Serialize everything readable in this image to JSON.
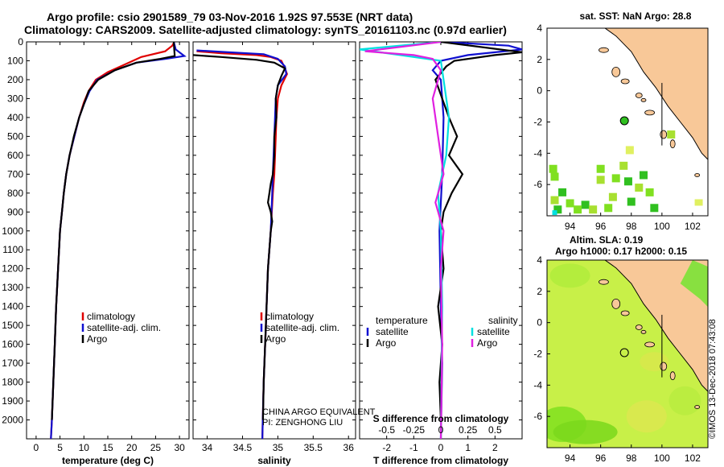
{
  "header": {
    "line1": "Argo profile: csio 2901589_79 03-Nov-2016 1.92S 97.553E (NRT data)",
    "line2": "Climatology: CARS2009. Satellite-adjusted climatology: synTS_20161103.nc (0.97d earlier)"
  },
  "colors": {
    "climatology": "#e00000",
    "satellite": "#1010d0",
    "argo": "#000000",
    "sat_t": "#1010d0",
    "sat_s": "#00e0e0",
    "argo_s": "#e020e0",
    "land": "#f8c898",
    "sea_map": "#ffffff"
  },
  "chart_data": [
    {
      "type": "line",
      "id": "temperature",
      "xlabel": "temperature (deg C)",
      "xlim": [
        -2,
        32
      ],
      "xticks": [
        0,
        5,
        10,
        15,
        20,
        25,
        30
      ],
      "ylim": [
        2100,
        0
      ],
      "yticks": [
        0,
        100,
        200,
        300,
        400,
        500,
        600,
        700,
        800,
        900,
        1000,
        1100,
        1200,
        1300,
        1400,
        1500,
        1600,
        1700,
        1800,
        1900,
        2000
      ],
      "legend": [
        "climatology",
        "satellite-adj. clim.",
        "Argo"
      ],
      "series": [
        {
          "name": "climatology",
          "color": "#e00000",
          "points": [
            [
              28.9,
              0
            ],
            [
              28.5,
              20
            ],
            [
              27,
              50
            ],
            [
              22,
              80
            ],
            [
              18.5,
              120
            ],
            [
              15,
              160
            ],
            [
              12.5,
              200
            ],
            [
              11,
              260
            ],
            [
              10,
              320
            ],
            [
              9,
              400
            ],
            [
              8,
              500
            ],
            [
              7,
              600
            ],
            [
              6.3,
              700
            ],
            [
              5.8,
              800
            ],
            [
              5.4,
              900
            ],
            [
              5,
              1000
            ],
            [
              4.6,
              1200
            ],
            [
              4.2,
              1400
            ],
            [
              3.9,
              1600
            ],
            [
              3.6,
              1800
            ],
            [
              3.3,
              2000
            ],
            [
              3.1,
              2100
            ]
          ]
        },
        {
          "name": "satellite-adj. clim.",
          "color": "#1010d0",
          "points": [
            [
              28.8,
              0
            ],
            [
              29.2,
              40
            ],
            [
              31,
              75
            ],
            [
              27,
              90
            ],
            [
              21,
              110
            ],
            [
              16.5,
              150
            ],
            [
              12.8,
              200
            ],
            [
              11.2,
              260
            ],
            [
              10,
              330
            ],
            [
              9,
              400
            ],
            [
              8,
              500
            ],
            [
              7,
              600
            ],
            [
              6.3,
              700
            ],
            [
              5.8,
              800
            ],
            [
              5.4,
              900
            ],
            [
              5,
              1000
            ],
            [
              4.6,
              1200
            ],
            [
              4.2,
              1400
            ],
            [
              3.9,
              1600
            ],
            [
              3.6,
              1800
            ],
            [
              3.3,
              2000
            ],
            [
              3.1,
              2100
            ]
          ]
        },
        {
          "name": "Argo",
          "color": "#000000",
          "points": [
            [
              28.8,
              0
            ],
            [
              28.9,
              40
            ],
            [
              29,
              75
            ],
            [
              26,
              90
            ],
            [
              21,
              110
            ],
            [
              16.5,
              150
            ],
            [
              13,
              200
            ],
            [
              11,
              260
            ],
            [
              10,
              330
            ],
            [
              9,
              400
            ],
            [
              7.9,
              500
            ],
            [
              7,
              600
            ],
            [
              6.3,
              700
            ],
            [
              5.8,
              800
            ],
            [
              5.4,
              900
            ],
            [
              5,
              1000
            ],
            [
              4.6,
              1200
            ],
            [
              4.2,
              1400
            ],
            [
              3.9,
              1600
            ],
            [
              3.6,
              1800
            ],
            [
              3.3,
              2000
            ]
          ]
        }
      ]
    },
    {
      "type": "line",
      "id": "salinity",
      "xlabel": "salinity",
      "xlim": [
        33.8,
        36.1
      ],
      "xticks": [
        34,
        34.5,
        35,
        35.5,
        36
      ],
      "ylim": [
        2100,
        0
      ],
      "legend": [
        "climatology",
        "satellite-adj. clim.",
        "Argo"
      ],
      "series": [
        {
          "name": "climatology",
          "color": "#e00000",
          "points": [
            [
              33.85,
              50
            ],
            [
              34.2,
              60
            ],
            [
              34.7,
              70
            ],
            [
              34.9,
              80
            ],
            [
              35.05,
              100
            ],
            [
              35.1,
              140
            ],
            [
              35.13,
              170
            ],
            [
              35.05,
              230
            ],
            [
              35.0,
              300
            ],
            [
              34.98,
              400
            ],
            [
              34.97,
              500
            ],
            [
              34.96,
              600
            ],
            [
              34.95,
              700
            ],
            [
              34.93,
              800
            ],
            [
              34.9,
              1000
            ],
            [
              34.86,
              1200
            ],
            [
              34.83,
              1500
            ],
            [
              34.8,
              1800
            ],
            [
              34.78,
              2100
            ]
          ]
        },
        {
          "name": "satellite-adj. clim.",
          "color": "#1010d0",
          "points": [
            [
              33.85,
              45
            ],
            [
              34.3,
              55
            ],
            [
              34.8,
              65
            ],
            [
              35.0,
              90
            ],
            [
              35.1,
              130
            ],
            [
              35.12,
              170
            ],
            [
              35.0,
              230
            ],
            [
              34.97,
              300
            ],
            [
              34.96,
              400
            ],
            [
              34.95,
              500
            ],
            [
              34.94,
              600
            ],
            [
              34.93,
              700
            ],
            [
              34.92,
              800
            ],
            [
              34.9,
              1000
            ],
            [
              34.86,
              1200
            ],
            [
              34.83,
              1500
            ],
            [
              34.8,
              1800
            ],
            [
              34.78,
              2100
            ]
          ]
        },
        {
          "name": "Argo",
          "color": "#000000",
          "points": [
            [
              33.8,
              70
            ],
            [
              34.2,
              80
            ],
            [
              34.7,
              95
            ],
            [
              34.95,
              110
            ],
            [
              35.1,
              140
            ],
            [
              35.05,
              180
            ],
            [
              35.0,
              230
            ],
            [
              34.97,
              300
            ],
            [
              34.98,
              400
            ],
            [
              34.95,
              500
            ],
            [
              34.95,
              600
            ],
            [
              34.93,
              700
            ],
            [
              34.9,
              750
            ],
            [
              34.88,
              800
            ],
            [
              34.86,
              850
            ],
            [
              34.9,
              900
            ],
            [
              34.92,
              950
            ],
            [
              34.9,
              1000
            ],
            [
              34.86,
              1200
            ],
            [
              34.83,
              1500
            ],
            [
              34.8,
              1800
            ],
            [
              34.79,
              2000
            ]
          ]
        }
      ]
    },
    {
      "type": "line",
      "id": "difference",
      "xlabel": "T difference from climatology",
      "xlabel2": "S difference from climatology",
      "xlim": [
        -3,
        3
      ],
      "xticks": [
        -2,
        -1,
        0,
        1,
        2
      ],
      "xticks2": [
        -0.5,
        -0.25,
        0,
        0.25,
        0.5
      ],
      "xticks2_labels": [
        "-0.5",
        "-0.25",
        "0",
        "0.25",
        "0.5"
      ],
      "ylim": [
        2100,
        0
      ],
      "legend_left": {
        "title": "temperature",
        "items": [
          "satellite",
          "Argo"
        ]
      },
      "legend_right": {
        "title": "salinity",
        "items": [
          "satellite",
          "Argo"
        ]
      },
      "series": [
        {
          "name": "T satellite",
          "color": "#1010d0",
          "points": [
            [
              0,
              0
            ],
            [
              2.5,
              20
            ],
            [
              3,
              40
            ],
            [
              1,
              70
            ],
            [
              0,
              100
            ],
            [
              -0.3,
              150
            ],
            [
              0,
              200
            ],
            [
              0.1,
              400
            ],
            [
              0.05,
              700
            ],
            [
              -0.05,
              1000
            ],
            [
              0,
              1400
            ],
            [
              0.05,
              1700
            ],
            [
              0,
              2100
            ]
          ]
        },
        {
          "name": "T Argo",
          "color": "#000000",
          "points": [
            [
              0,
              0
            ],
            [
              3,
              55
            ],
            [
              2,
              70
            ],
            [
              0.5,
              100
            ],
            [
              0.2,
              130
            ],
            [
              -0.2,
              200
            ],
            [
              0.3,
              400
            ],
            [
              0.6,
              500
            ],
            [
              0.3,
              600
            ],
            [
              0.8,
              700
            ],
            [
              0.4,
              800
            ],
            [
              0.1,
              900
            ],
            [
              0,
              1000
            ],
            [
              0.1,
              1200
            ],
            [
              -0.1,
              1400
            ],
            [
              0.05,
              1600
            ],
            [
              -0.05,
              1800
            ],
            [
              0,
              2000
            ]
          ]
        },
        {
          "name": "S satellite",
          "color": "#00e0e0",
          "points": [
            [
              0,
              0
            ],
            [
              -3,
              40
            ],
            [
              -1.5,
              70
            ],
            [
              0,
              100
            ],
            [
              0.1,
              200
            ],
            [
              0.3,
              400
            ],
            [
              0.2,
              600
            ],
            [
              -0.1,
              800
            ],
            [
              0,
              1000
            ],
            [
              0.05,
              1400
            ],
            [
              0,
              2100
            ]
          ]
        },
        {
          "name": "S Argo",
          "color": "#e020e0",
          "points": [
            [
              0,
              0
            ],
            [
              -2.8,
              50
            ],
            [
              -1,
              70
            ],
            [
              -0.3,
              90
            ],
            [
              0,
              150
            ],
            [
              -0.3,
              300
            ],
            [
              -0.1,
              500
            ],
            [
              0.1,
              700
            ],
            [
              -0.2,
              850
            ],
            [
              0.1,
              1000
            ],
            [
              0,
              1200
            ],
            [
              0.05,
              1600
            ],
            [
              0,
              2100
            ]
          ]
        }
      ]
    },
    {
      "type": "heatmap",
      "id": "sst-map",
      "title": "sat. SST: NaN Argo: 28.8",
      "xlim": [
        92.5,
        103
      ],
      "ylim": [
        -8,
        4
      ],
      "xticks": [
        94,
        96,
        98,
        100,
        102
      ],
      "yticks": [
        4,
        2,
        0,
        -2,
        -4,
        -6
      ],
      "argo_position": [
        97.55,
        -1.92
      ]
    },
    {
      "type": "heatmap",
      "id": "sla-map",
      "title": "Altim. SLA: 0.19",
      "subtitle": "Argo h1000: 0.17 h2000: 0.15",
      "xlim": [
        92.5,
        103
      ],
      "ylim": [
        -8,
        4
      ],
      "xticks": [
        94,
        96,
        98,
        100,
        102
      ],
      "yticks": [
        4,
        2,
        0,
        -2,
        -4,
        -6
      ],
      "argo_position": [
        97.55,
        -1.92
      ]
    }
  ],
  "annotations": {
    "pi_line1": "CHINA ARGO EQUIVALENT",
    "pi_line2": "PI: ZENGHONG LIU",
    "stamp": "©IMOS 13-Dec-2018 07:43:08"
  }
}
